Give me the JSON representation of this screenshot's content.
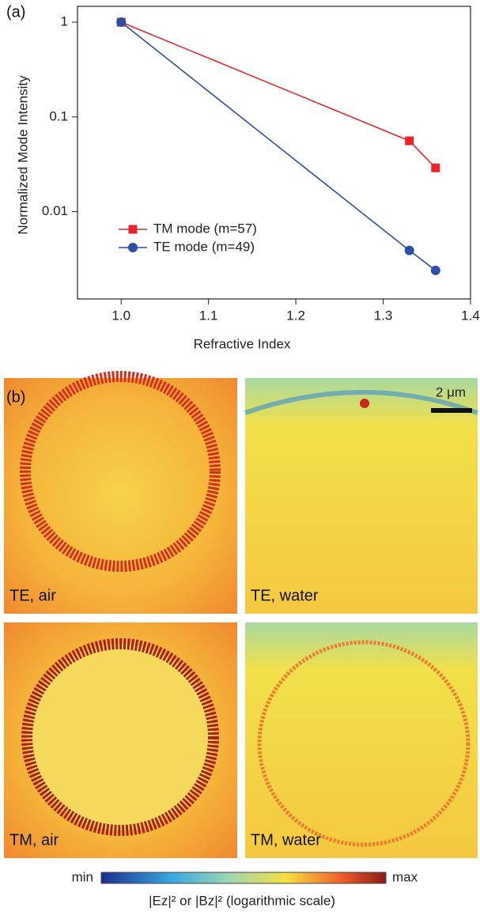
{
  "chart_data": {
    "type": "line",
    "panel_label": "(a)",
    "x_label": "Refractive Index",
    "y_label": "Normalized Mode Intensity",
    "x": [
      1.0,
      1.33,
      1.36
    ],
    "series": [
      {
        "name": "TM mode (m=57)",
        "color": "#e8262a",
        "marker": "square",
        "values": [
          1,
          0.056,
          0.029
        ]
      },
      {
        "name": "TE mode (m=49)",
        "color": "#2b4fa6",
        "marker": "circle",
        "values": [
          1,
          0.0039,
          0.0024
        ]
      }
    ],
    "xlim": [
      0.95,
      1.4
    ],
    "xticks": [
      {
        "value": 1,
        "label": "1.0"
      },
      1.1,
      1.2,
      1.3,
      1.4
    ],
    "ylim": [
      0.0012,
      1.47
    ],
    "yticks": [
      1,
      0.1,
      0.01
    ],
    "log_y": true,
    "legend": "lower left"
  },
  "panel_b": {
    "label": "(b)",
    "scale_bar": "2 μm",
    "panels": [
      "TE, air",
      "TE, water",
      "TM, air",
      "TM, water"
    ],
    "colorbar": {
      "min": "min",
      "max": "max",
      "caption": "|Ez|² or |Bz|² (logarithmic scale)"
    }
  }
}
